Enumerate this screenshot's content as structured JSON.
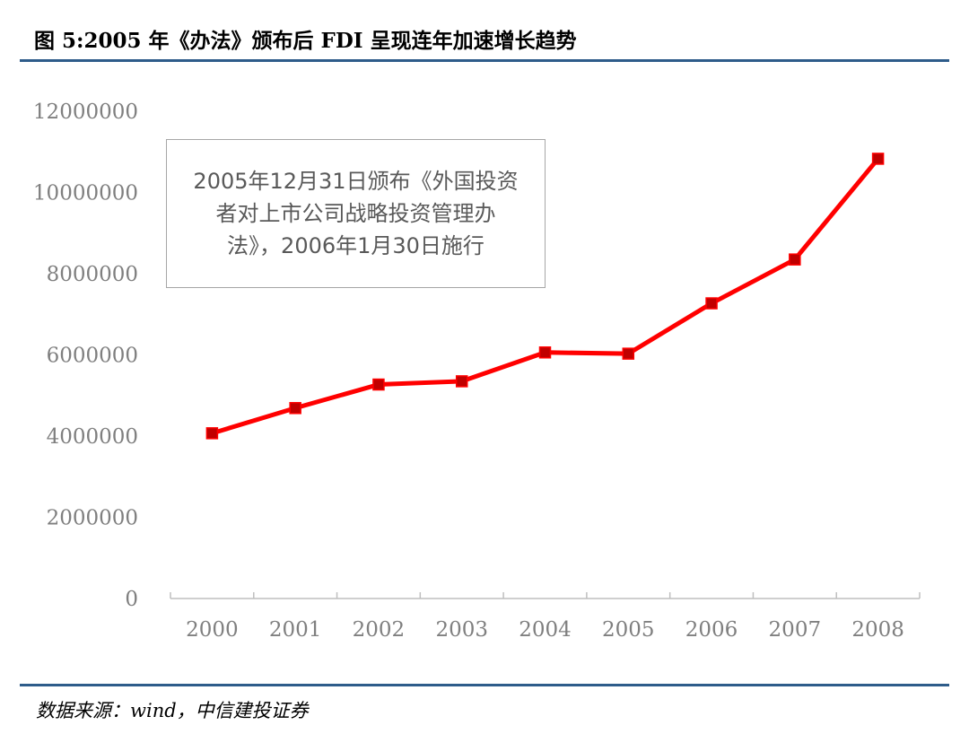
{
  "header": {
    "title": "图 5:2005 年《办法》颁布后 FDI 呈现连年加速增长趋势"
  },
  "footer": {
    "source": "数据来源：wind，中信建投证券"
  },
  "annotation": {
    "lines": [
      "2005年12月31日颁布《外国投资",
      "者对上市公司战略投资管理办",
      "法》，2006年1月30日施行"
    ]
  },
  "colors": {
    "line": "#ff0000",
    "marker": "#c00000",
    "rule": "#2e5c8a",
    "axis_text": "#7f7f7f"
  },
  "chart_data": {
    "type": "line",
    "title": "",
    "xlabel": "",
    "ylabel": "",
    "categories": [
      "2000",
      "2001",
      "2002",
      "2003",
      "2004",
      "2005",
      "2006",
      "2007",
      "2008"
    ],
    "series": [
      {
        "values": [
          4070000,
          4690000,
          5270000,
          5350000,
          6060000,
          6030000,
          7270000,
          8350000,
          10830000
        ]
      }
    ],
    "ylim": [
      0,
      12000000
    ],
    "yticks": [
      "0",
      "2000000",
      "4000000",
      "6000000",
      "8000000",
      "10000000",
      "12000000"
    ],
    "grid": false,
    "legend": "none"
  }
}
